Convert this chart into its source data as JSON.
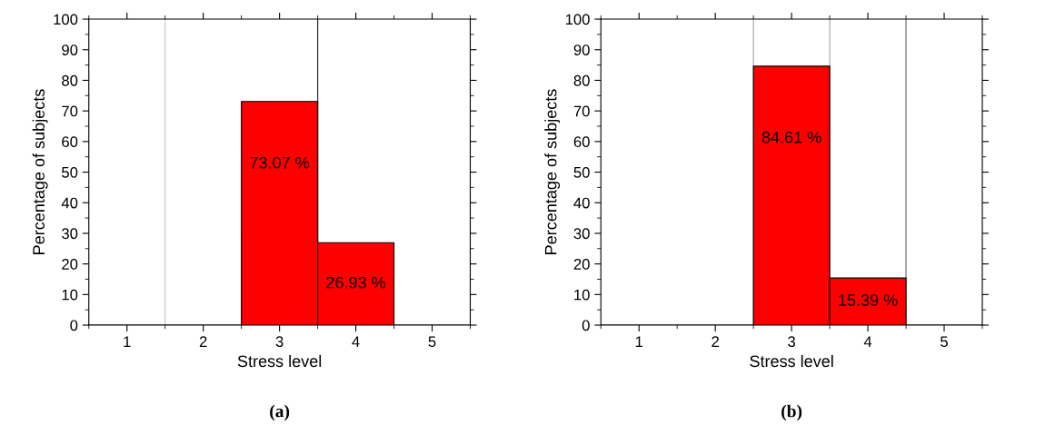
{
  "chart_data": [
    {
      "type": "histogram",
      "bins": [
        0.5,
        1.5,
        2.5,
        3.5,
        4.5,
        5.5
      ],
      "values": [
        0,
        0,
        73.07,
        26.93,
        0
      ],
      "color": "#ff0000",
      "value_labels": [
        null,
        null,
        "73.07 %",
        "26.93 %",
        null
      ],
      "xlabel": "Stress level",
      "ylabel": "Percentage of subjects",
      "xlim": [
        0.5,
        5.5
      ],
      "xticks": [
        1,
        2,
        3,
        4,
        5
      ],
      "ylim": [
        0,
        100
      ],
      "yticks": [
        0,
        10,
        20,
        30,
        40,
        50,
        60,
        70,
        80,
        90,
        100
      ],
      "grid": false,
      "legend": false,
      "ref_lines": [
        {
          "axis": "x",
          "value": 1.5,
          "color": "#c8c8c8"
        },
        {
          "axis": "x",
          "value": 3.5,
          "color": "#333333"
        }
      ],
      "annotations": [
        "(a)"
      ]
    },
    {
      "type": "histogram",
      "bins": [
        0.5,
        1.5,
        2.5,
        3.5,
        4.5,
        5.5
      ],
      "values": [
        0,
        0,
        84.61,
        15.39,
        0
      ],
      "color": "#ff0000",
      "value_labels": [
        null,
        null,
        "84.61 %",
        "15.39 %",
        null
      ],
      "xlabel": "Stress level",
      "ylabel": "Percentage of subjects",
      "xlim": [
        0.5,
        5.5
      ],
      "xticks": [
        1,
        2,
        3,
        4,
        5
      ],
      "ylim": [
        0,
        100
      ],
      "yticks": [
        0,
        10,
        20,
        30,
        40,
        50,
        60,
        70,
        80,
        90,
        100
      ],
      "grid": false,
      "legend": false,
      "ref_lines": [
        {
          "axis": "x",
          "value": 2.5,
          "color": "#aaaaaa"
        },
        {
          "axis": "x",
          "value": 3.5,
          "color": "#aaaaaa"
        },
        {
          "axis": "x",
          "value": 4.5,
          "color": "#777777"
        }
      ],
      "annotations": [
        "(b)"
      ]
    }
  ]
}
